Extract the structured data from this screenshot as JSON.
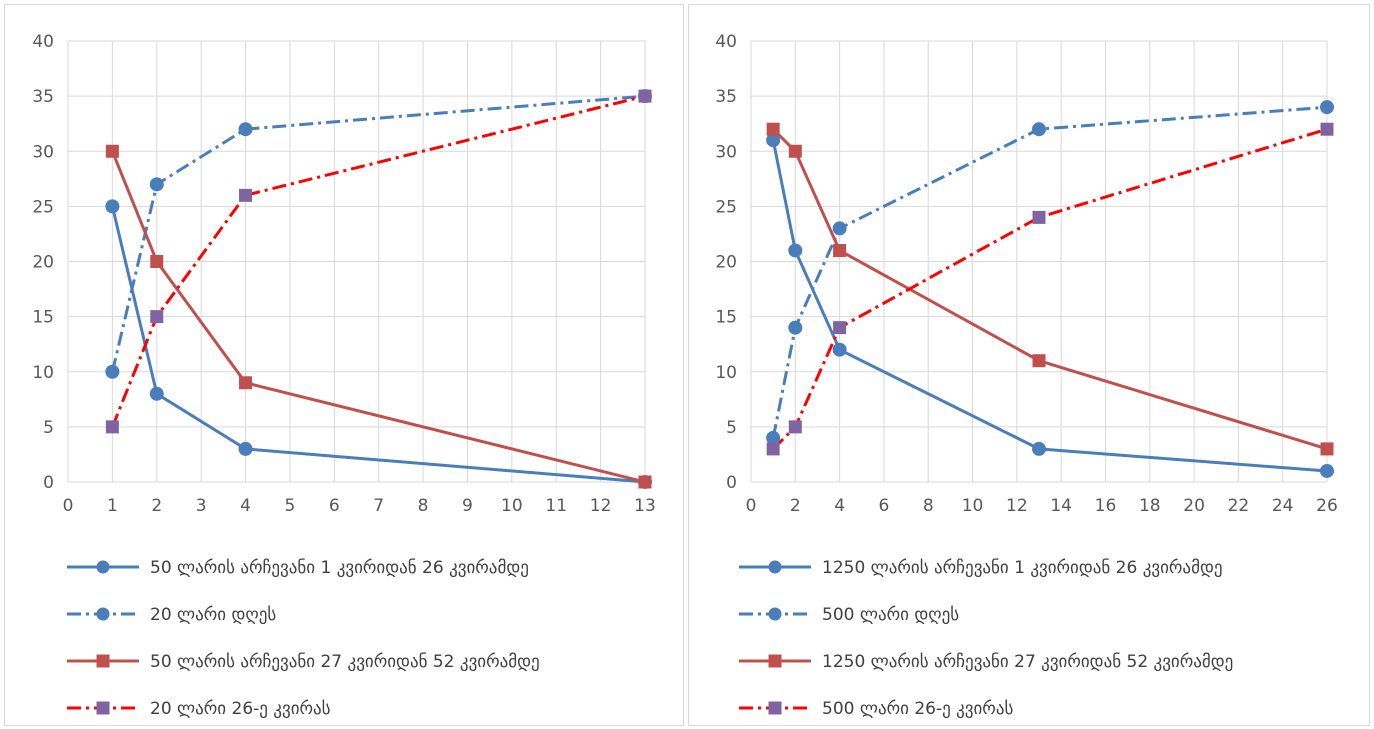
{
  "chart_data": [
    {
      "type": "line",
      "title": "",
      "xlabel": "",
      "ylabel": "",
      "xlim": [
        0,
        13
      ],
      "ylim": [
        0,
        40
      ],
      "xticks": [
        0,
        1,
        2,
        3,
        4,
        5,
        6,
        7,
        8,
        9,
        10,
        11,
        12,
        13
      ],
      "yticks": [
        0,
        5,
        10,
        15,
        20,
        25,
        30,
        35,
        40
      ],
      "grid": true,
      "legend_position": "bottom",
      "series": [
        {
          "name": "50 ლარის არჩევანი 1 კვირიდან 26 კვირამდე",
          "x": [
            1,
            2,
            4,
            13
          ],
          "y": [
            25,
            8,
            3,
            0
          ],
          "color": "#4a7ebb",
          "marker": "circle",
          "dash": "solid"
        },
        {
          "name": "20 ლარი დღეს",
          "x": [
            1,
            2,
            4,
            13
          ],
          "y": [
            10,
            27,
            32,
            35
          ],
          "color": "#4a7ebb",
          "marker": "circle",
          "dash": "dashdot"
        },
        {
          "name": "50 ლარის არჩევანი 27 კვირიდან 52 კვირამდე",
          "x": [
            1,
            2,
            4,
            13
          ],
          "y": [
            30,
            20,
            9,
            0
          ],
          "color": "#c0504d",
          "marker": "square",
          "dash": "solid"
        },
        {
          "name": "20 ლარი 26-ე კვირას",
          "x": [
            1,
            2,
            4,
            13
          ],
          "y": [
            5,
            15,
            26,
            35
          ],
          "color": "#ff0000",
          "marker_color": "#8064a2",
          "marker": "square",
          "dash": "dashdot"
        }
      ]
    },
    {
      "type": "line",
      "title": "",
      "xlabel": "",
      "ylabel": "",
      "xlim": [
        0,
        26
      ],
      "ylim": [
        0,
        40
      ],
      "xticks": [
        0,
        2,
        4,
        6,
        8,
        10,
        12,
        14,
        16,
        18,
        20,
        22,
        24,
        26
      ],
      "yticks": [
        0,
        5,
        10,
        15,
        20,
        25,
        30,
        35,
        40
      ],
      "grid": true,
      "legend_position": "bottom",
      "series": [
        {
          "name": "1250 ლარის არჩევანი 1 კვირიდან 26 კვირამდე",
          "x": [
            1,
            2,
            4,
            13,
            26
          ],
          "y": [
            31,
            21,
            12,
            3,
            1
          ],
          "color": "#4a7ebb",
          "marker": "circle",
          "dash": "solid"
        },
        {
          "name": "500 ლარი დღეს",
          "x": [
            1,
            2,
            4,
            13,
            26
          ],
          "y": [
            4,
            14,
            23,
            32,
            34
          ],
          "color": "#4a7ebb",
          "marker": "circle",
          "dash": "dashdot"
        },
        {
          "name": "1250 ლარის არჩევანი 27 კვირიდან 52 კვირამდე",
          "x": [
            1,
            2,
            4,
            13,
            26
          ],
          "y": [
            32,
            30,
            21,
            11,
            3
          ],
          "color": "#c0504d",
          "marker": "square",
          "dash": "solid"
        },
        {
          "name": "500 ლარი 26-ე კვირას",
          "x": [
            1,
            2,
            4,
            13,
            26
          ],
          "y": [
            3,
            5,
            14,
            24,
            32
          ],
          "color": "#ff0000",
          "marker_color": "#8064a2",
          "marker": "square",
          "dash": "dashdot"
        }
      ]
    }
  ]
}
